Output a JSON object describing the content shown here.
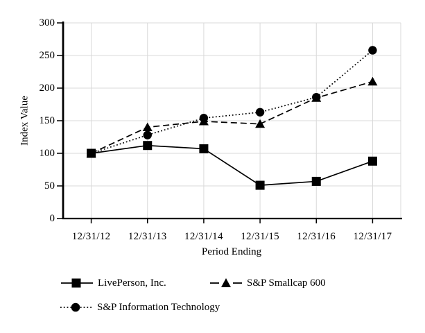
{
  "chart_data": {
    "type": "line",
    "title": "",
    "xlabel": "Period Ending",
    "ylabel": "Index Value",
    "ylim": [
      0,
      300
    ],
    "yticks": [
      0,
      50,
      100,
      150,
      200,
      250,
      300
    ],
    "grid": true,
    "legend_position": "bottom-left",
    "categories": [
      "12/31/12",
      "12/31/13",
      "12/31/14",
      "12/31/15",
      "12/31/16",
      "12/31/17"
    ],
    "series": [
      {
        "name": "LivePerson, Inc.",
        "marker": "square",
        "line_style": "solid",
        "values": [
          100,
          112,
          107,
          51,
          57,
          88
        ]
      },
      {
        "name": "S&P Smallcap 600",
        "marker": "triangle",
        "line_style": "dashed",
        "values": [
          100,
          140,
          149,
          145,
          185,
          210
        ]
      },
      {
        "name": "S&P Information Technology",
        "marker": "circle",
        "line_style": "dotted",
        "values": [
          100,
          128,
          154,
          163,
          186,
          258
        ]
      }
    ],
    "colors": {
      "series": "#000000",
      "gridline": "#d9d9d9",
      "background": "#ffffff",
      "text": "#000000"
    }
  }
}
